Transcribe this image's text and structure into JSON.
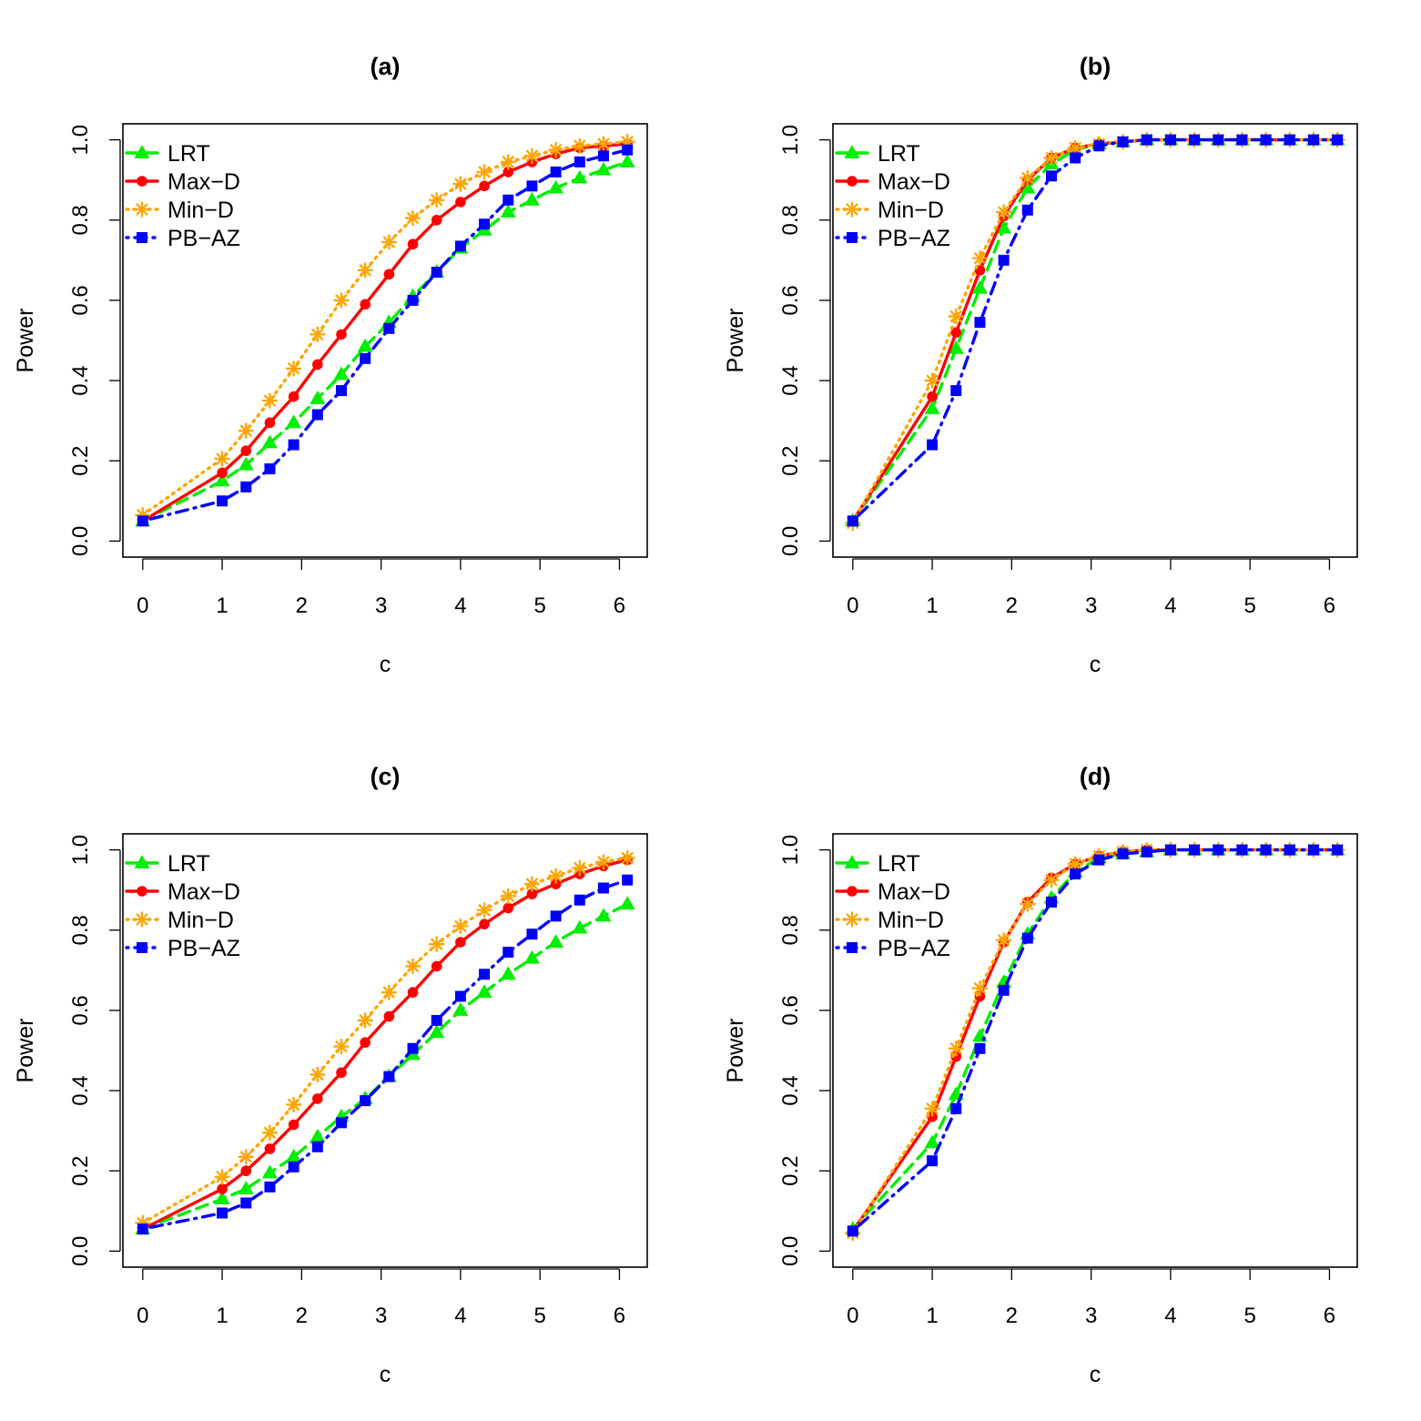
{
  "chart_data": [
    {
      "type": "line",
      "title": "(a)",
      "xlabel": "c",
      "ylabel": "Power",
      "xlim": [
        -0.25,
        6.35
      ],
      "ylim": [
        -0.04,
        1.04
      ],
      "xticks": [
        0,
        1,
        2,
        3,
        4,
        5,
        6
      ],
      "yticks": [
        0.0,
        0.2,
        0.4,
        0.6,
        0.8,
        1.0
      ],
      "xtick_labels": [
        "0",
        "1",
        "2",
        "3",
        "4",
        "5",
        "6"
      ],
      "ytick_labels": [
        "0.0",
        "0.2",
        "0.4",
        "0.6",
        "0.8",
        "1.0"
      ],
      "grid": false,
      "legend_position": "top-left",
      "x": [
        0,
        1,
        1.3,
        1.6,
        1.9,
        2.2,
        2.5,
        2.8,
        3.1,
        3.4,
        3.7,
        4.0,
        4.3,
        4.6,
        4.9,
        5.2,
        5.5,
        5.8,
        6.1
      ],
      "series": [
        {
          "name": "LRT",
          "color": "#00ee00",
          "marker": "triangle",
          "dash": "dashed",
          "values": [
            0.05,
            0.15,
            0.19,
            0.245,
            0.295,
            0.355,
            0.415,
            0.485,
            0.545,
            0.61,
            0.67,
            0.73,
            0.775,
            0.82,
            0.85,
            0.88,
            0.905,
            0.925,
            0.945
          ]
        },
        {
          "name": "Max−D",
          "color": "#ff0000",
          "marker": "circle",
          "dash": "solid",
          "values": [
            0.05,
            0.17,
            0.225,
            0.295,
            0.36,
            0.44,
            0.515,
            0.59,
            0.665,
            0.74,
            0.8,
            0.845,
            0.885,
            0.92,
            0.945,
            0.965,
            0.98,
            0.985,
            0.99
          ]
        },
        {
          "name": "Min−D",
          "color": "#ffa500",
          "marker": "asterisk",
          "dash": "dotted",
          "values": [
            0.065,
            0.205,
            0.275,
            0.35,
            0.43,
            0.515,
            0.6,
            0.675,
            0.745,
            0.805,
            0.85,
            0.89,
            0.92,
            0.945,
            0.96,
            0.975,
            0.985,
            0.99,
            0.995
          ]
        },
        {
          "name": "PB−AZ",
          "color": "#0000ff",
          "marker": "square",
          "dash": "dotdash",
          "values": [
            0.05,
            0.1,
            0.135,
            0.18,
            0.24,
            0.315,
            0.375,
            0.455,
            0.53,
            0.6,
            0.67,
            0.735,
            0.79,
            0.85,
            0.885,
            0.92,
            0.945,
            0.96,
            0.975
          ]
        }
      ]
    },
    {
      "type": "line",
      "title": "(b)",
      "xlabel": "c",
      "ylabel": "Power",
      "xlim": [
        -0.25,
        6.35
      ],
      "ylim": [
        -0.04,
        1.04
      ],
      "xticks": [
        0,
        1,
        2,
        3,
        4,
        5,
        6
      ],
      "yticks": [
        0.0,
        0.2,
        0.4,
        0.6,
        0.8,
        1.0
      ],
      "xtick_labels": [
        "0",
        "1",
        "2",
        "3",
        "4",
        "5",
        "6"
      ],
      "ytick_labels": [
        "0.0",
        "0.2",
        "0.4",
        "0.6",
        "0.8",
        "1.0"
      ],
      "grid": false,
      "legend_position": "top-left",
      "x": [
        0,
        1,
        1.3,
        1.6,
        1.9,
        2.2,
        2.5,
        2.8,
        3.1,
        3.4,
        3.7,
        4.0,
        4.3,
        4.6,
        4.9,
        5.2,
        5.5,
        5.8,
        6.1
      ],
      "series": [
        {
          "name": "LRT",
          "color": "#00ee00",
          "marker": "triangle",
          "dash": "dashed",
          "values": [
            0.05,
            0.33,
            0.48,
            0.63,
            0.78,
            0.88,
            0.94,
            0.975,
            0.99,
            0.995,
            1.0,
            1.0,
            1.0,
            1.0,
            1.0,
            1.0,
            1.0,
            1.0,
            1.0
          ]
        },
        {
          "name": "Max−D",
          "color": "#ff0000",
          "marker": "circle",
          "dash": "solid",
          "values": [
            0.05,
            0.36,
            0.52,
            0.675,
            0.81,
            0.9,
            0.955,
            0.98,
            0.99,
            0.995,
            1.0,
            1.0,
            1.0,
            1.0,
            1.0,
            1.0,
            1.0,
            1.0,
            1.0
          ]
        },
        {
          "name": "Min−D",
          "color": "#ffa500",
          "marker": "asterisk",
          "dash": "dotted",
          "values": [
            0.045,
            0.4,
            0.56,
            0.705,
            0.82,
            0.905,
            0.955,
            0.98,
            0.99,
            0.995,
            1.0,
            1.0,
            1.0,
            1.0,
            1.0,
            1.0,
            1.0,
            1.0,
            1.0
          ]
        },
        {
          "name": "PB−AZ",
          "color": "#0000ff",
          "marker": "square",
          "dash": "dotdash",
          "values": [
            0.05,
            0.24,
            0.375,
            0.545,
            0.7,
            0.825,
            0.91,
            0.955,
            0.985,
            0.995,
            1.0,
            1.0,
            1.0,
            1.0,
            1.0,
            1.0,
            1.0,
            1.0,
            1.0
          ]
        }
      ]
    },
    {
      "type": "line",
      "title": "(c)",
      "xlabel": "c",
      "ylabel": "Power",
      "xlim": [
        -0.25,
        6.35
      ],
      "ylim": [
        -0.04,
        1.04
      ],
      "xticks": [
        0,
        1,
        2,
        3,
        4,
        5,
        6
      ],
      "yticks": [
        0.0,
        0.2,
        0.4,
        0.6,
        0.8,
        1.0
      ],
      "xtick_labels": [
        "0",
        "1",
        "2",
        "3",
        "4",
        "5",
        "6"
      ],
      "ytick_labels": [
        "0.0",
        "0.2",
        "0.4",
        "0.6",
        "0.8",
        "1.0"
      ],
      "grid": false,
      "legend_position": "top-left",
      "x": [
        0,
        1,
        1.3,
        1.6,
        1.9,
        2.2,
        2.5,
        2.8,
        3.1,
        3.4,
        3.7,
        4.0,
        4.3,
        4.6,
        4.9,
        5.2,
        5.5,
        5.8,
        6.1
      ],
      "series": [
        {
          "name": "LRT",
          "color": "#00ee00",
          "marker": "triangle",
          "dash": "dashed",
          "values": [
            0.055,
            0.13,
            0.155,
            0.195,
            0.235,
            0.285,
            0.335,
            0.38,
            0.435,
            0.49,
            0.545,
            0.6,
            0.645,
            0.69,
            0.73,
            0.77,
            0.805,
            0.835,
            0.865
          ]
        },
        {
          "name": "Max−D",
          "color": "#ff0000",
          "marker": "circle",
          "dash": "solid",
          "values": [
            0.055,
            0.155,
            0.2,
            0.255,
            0.315,
            0.38,
            0.445,
            0.52,
            0.585,
            0.645,
            0.71,
            0.77,
            0.815,
            0.855,
            0.89,
            0.915,
            0.94,
            0.96,
            0.975
          ]
        },
        {
          "name": "Min−D",
          "color": "#ffa500",
          "marker": "asterisk",
          "dash": "dotted",
          "values": [
            0.07,
            0.185,
            0.235,
            0.295,
            0.365,
            0.44,
            0.51,
            0.575,
            0.645,
            0.71,
            0.765,
            0.81,
            0.85,
            0.885,
            0.915,
            0.935,
            0.955,
            0.97,
            0.98
          ]
        },
        {
          "name": "PB−AZ",
          "color": "#0000ff",
          "marker": "square",
          "dash": "dotdash",
          "values": [
            0.055,
            0.095,
            0.12,
            0.16,
            0.21,
            0.26,
            0.32,
            0.375,
            0.435,
            0.505,
            0.575,
            0.635,
            0.69,
            0.745,
            0.79,
            0.835,
            0.875,
            0.905,
            0.925
          ]
        }
      ]
    },
    {
      "type": "line",
      "title": "(d)",
      "xlabel": "c",
      "ylabel": "Power",
      "xlim": [
        -0.25,
        6.35
      ],
      "ylim": [
        -0.04,
        1.04
      ],
      "xticks": [
        0,
        1,
        2,
        3,
        4,
        5,
        6
      ],
      "yticks": [
        0.0,
        0.2,
        0.4,
        0.6,
        0.8,
        1.0
      ],
      "xtick_labels": [
        "0",
        "1",
        "2",
        "3",
        "4",
        "5",
        "6"
      ],
      "ytick_labels": [
        "0.0",
        "0.2",
        "0.4",
        "0.6",
        "0.8",
        "1.0"
      ],
      "grid": false,
      "legend_position": "top-left",
      "x": [
        0,
        1,
        1.3,
        1.6,
        1.9,
        2.2,
        2.5,
        2.8,
        3.1,
        3.4,
        3.7,
        4.0,
        4.3,
        4.6,
        4.9,
        5.2,
        5.5,
        5.8,
        6.1
      ],
      "series": [
        {
          "name": "LRT",
          "color": "#00ee00",
          "marker": "triangle",
          "dash": "dashed",
          "values": [
            0.055,
            0.27,
            0.39,
            0.535,
            0.67,
            0.79,
            0.88,
            0.945,
            0.98,
            0.99,
            0.995,
            1.0,
            1.0,
            1.0,
            1.0,
            1.0,
            1.0,
            1.0,
            1.0
          ]
        },
        {
          "name": "Max−D",
          "color": "#ff0000",
          "marker": "circle",
          "dash": "solid",
          "values": [
            0.05,
            0.335,
            0.485,
            0.635,
            0.77,
            0.87,
            0.93,
            0.965,
            0.985,
            0.995,
            1.0,
            1.0,
            1.0,
            1.0,
            1.0,
            1.0,
            1.0,
            1.0,
            1.0
          ]
        },
        {
          "name": "Min−D",
          "color": "#ffa500",
          "marker": "asterisk",
          "dash": "dotted",
          "values": [
            0.045,
            0.355,
            0.505,
            0.655,
            0.775,
            0.865,
            0.925,
            0.965,
            0.985,
            0.995,
            1.0,
            1.0,
            1.0,
            1.0,
            1.0,
            1.0,
            1.0,
            1.0,
            1.0
          ]
        },
        {
          "name": "PB−AZ",
          "color": "#0000ff",
          "marker": "square",
          "dash": "dotdash",
          "values": [
            0.05,
            0.225,
            0.355,
            0.505,
            0.65,
            0.78,
            0.87,
            0.94,
            0.975,
            0.99,
            0.995,
            1.0,
            1.0,
            1.0,
            1.0,
            1.0,
            1.0,
            1.0,
            1.0
          ]
        }
      ]
    }
  ]
}
